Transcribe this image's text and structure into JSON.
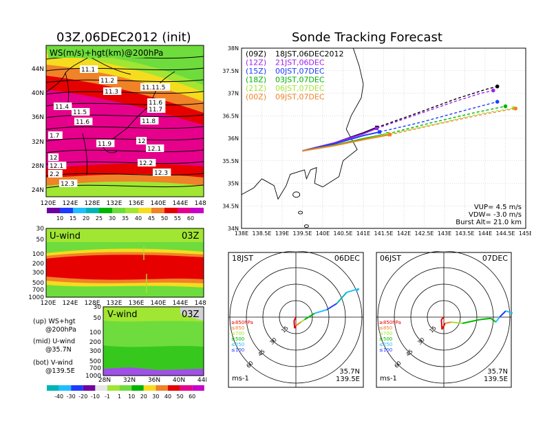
{
  "left_panel": {
    "title": "03Z,06DEC2012 (init)",
    "map_label": "WS(m/s)+hgt(km)@200hPa",
    "lat_labels": [
      "44N",
      "40N",
      "36N",
      "32N",
      "28N",
      "24N"
    ],
    "lon_labels": [
      "120E",
      "124E",
      "128E",
      "132E",
      "136E",
      "140E",
      "144E",
      "148E"
    ],
    "height_labels": [
      "11.1",
      "11.2",
      "11.3",
      "11.11.5",
      "11.4",
      "11.5",
      "11.6",
      "11.6",
      "11.7",
      "11.8",
      "1.7",
      "11.9",
      "12",
      "12.1",
      "12",
      "12.1",
      "12.2",
      "2.2",
      "12.3",
      "12.3"
    ],
    "ws_colorbar": [
      "10",
      "15",
      "20",
      "25",
      "30",
      "35",
      "40",
      "45",
      "50",
      "55",
      "60"
    ],
    "u_wind": {
      "label": "U-wind",
      "time": "03Z",
      "p_labels": [
        "30",
        "50",
        "100",
        "200",
        "300",
        "500",
        "700",
        "1000"
      ],
      "lon_labels": [
        "120E",
        "124E",
        "128E",
        "132E",
        "136E",
        "140E",
        "144E",
        "148E"
      ]
    },
    "v_wind": {
      "label": "V-wind",
      "time": "03Z",
      "p_labels": [
        "30",
        "50",
        "100",
        "200",
        "300",
        "500",
        "700",
        "1000"
      ],
      "lat_labels": [
        "28N",
        "32N",
        "36N",
        "40N",
        "44N"
      ]
    },
    "notes": {
      "up_1": "(up) WS+hgt",
      "up_2": "@200hPa",
      "mid_1": "(mid) U-wind",
      "mid_2": "@35.7N",
      "bot_1": "(bot) V-wind",
      "bot_2": "@139.5E"
    },
    "wind_colorbar": [
      "-40",
      "-30",
      "-20",
      "-10",
      "-1",
      "1",
      "10",
      "20",
      "30",
      "40",
      "50",
      "60"
    ]
  },
  "right_panel": {
    "title": "Sonde Tracking Forecast",
    "lat_labels": [
      "38N",
      "37.5N",
      "37N",
      "36.5N",
      "36N",
      "35.5N",
      "35N",
      "34.5N",
      "34N"
    ],
    "lon_labels": [
      "138E",
      "138.5E",
      "139E",
      "139.5E",
      "140E",
      "140.5E",
      "141E",
      "141.5E",
      "142E",
      "142.5E",
      "143E",
      "143.5E",
      "144E",
      "144.5E",
      "145E"
    ],
    "legend": [
      {
        "code": "(09Z)",
        "time": "18JST,06DEC2012",
        "color": "#000000"
      },
      {
        "code": "(12Z)",
        "time": "21JST,06DEC",
        "color": "#a020f0"
      },
      {
        "code": "(15Z)",
        "time": "00JST,07DEC",
        "color": "#1e3cff"
      },
      {
        "code": "(18Z)",
        "time": "03JST,07DEC",
        "color": "#00b400"
      },
      {
        "code": "(21Z)",
        "time": "06JST,07DEC",
        "color": "#a0e632"
      },
      {
        "code": "(00Z)",
        "time": "09JST,07DEC",
        "color": "#f08228"
      }
    ],
    "params": {
      "vup": "VUP= 4.5 m/s",
      "vdw": "VDW= -3.0 m/s",
      "burst": "Burst Alt= 21.0 km"
    }
  },
  "hodographs": [
    {
      "time": "18JST",
      "date": "06DEC",
      "ring_labels": [
        "15",
        "30",
        "45",
        "60"
      ],
      "location_1": "35.7N",
      "location_2": "139.5E",
      "units": "ms-1"
    },
    {
      "time": "06JST",
      "date": "07DEC",
      "ring_labels": [
        "15",
        "30",
        "45",
        "60"
      ],
      "location_1": "35.7N",
      "location_2": "139.5E",
      "units": "ms-1"
    }
  ],
  "hodo_legend": [
    "≥850hPa",
    "≤850",
    "≤700",
    "≤500",
    "≤250",
    "≤100"
  ],
  "hodo_legend_colors": [
    "#e60000",
    "#f08228",
    "#a0e632",
    "#00b400",
    "#1ebeff",
    "#1e3cff"
  ],
  "chart_data": {
    "type": "line",
    "title": "Sonde Tracking Forecast",
    "xlabel": "",
    "ylabel": "",
    "xlim": [
      138,
      145
    ],
    "ylim": [
      34,
      38
    ],
    "launch_point": {
      "lon": 139.5,
      "lat": 35.72
    },
    "series": [
      {
        "name": "18JST,06DEC2012",
        "color": "#000000",
        "points": [
          [
            139.5,
            35.72
          ],
          [
            140.3,
            35.9
          ],
          [
            141.0,
            36.12
          ],
          [
            141.33,
            36.24
          ],
          [
            142.3,
            36.55
          ],
          [
            143.3,
            36.88
          ],
          [
            144.0,
            37.08
          ],
          [
            144.3,
            37.15
          ]
        ]
      },
      {
        "name": "21JST,06DEC",
        "color": "#a020f0",
        "points": [
          [
            139.5,
            35.72
          ],
          [
            140.3,
            35.9
          ],
          [
            141.0,
            36.1
          ],
          [
            141.33,
            36.22
          ],
          [
            142.3,
            36.52
          ],
          [
            143.3,
            36.83
          ],
          [
            143.9,
            37.0
          ],
          [
            144.2,
            37.06
          ]
        ]
      },
      {
        "name": "00JST,07DEC",
        "color": "#1e3cff",
        "points": [
          [
            139.5,
            35.72
          ],
          [
            140.3,
            35.88
          ],
          [
            141.0,
            36.06
          ],
          [
            141.4,
            36.14
          ],
          [
            142.4,
            36.35
          ],
          [
            143.5,
            36.62
          ],
          [
            144.3,
            36.81
          ]
        ]
      },
      {
        "name": "03JST,07DEC",
        "color": "#00b400",
        "points": [
          [
            139.5,
            35.72
          ],
          [
            140.3,
            35.85
          ],
          [
            141.0,
            35.99
          ],
          [
            141.6,
            36.1
          ],
          [
            142.7,
            36.35
          ],
          [
            143.8,
            36.58
          ],
          [
            144.5,
            36.71
          ]
        ]
      },
      {
        "name": "06JST,07DEC",
        "color": "#a0e632",
        "points": [
          [
            139.5,
            35.72
          ],
          [
            140.3,
            35.84
          ],
          [
            141.0,
            35.97
          ],
          [
            141.6,
            36.09
          ],
          [
            142.8,
            36.32
          ],
          [
            143.9,
            36.55
          ],
          [
            144.7,
            36.67
          ]
        ]
      },
      {
        "name": "09JST,07DEC",
        "color": "#f08228",
        "points": [
          [
            139.5,
            35.72
          ],
          [
            140.3,
            35.84
          ],
          [
            141.0,
            35.97
          ],
          [
            141.65,
            36.08
          ],
          [
            142.9,
            36.33
          ],
          [
            144.0,
            36.54
          ],
          [
            144.75,
            36.66
          ]
        ]
      }
    ]
  }
}
